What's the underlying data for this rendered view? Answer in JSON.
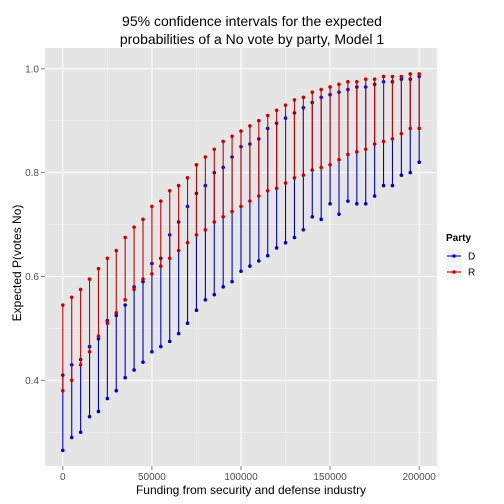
{
  "chart_data": {
    "type": "errorbar",
    "title_lines": [
      "95% confidence intervals for the expected",
      "probabilities of a No vote by party, Model 1"
    ],
    "xlabel": "Funding from security and defense industry",
    "ylabel": "Expected P(votes No)",
    "xlim": [
      -10000,
      210000
    ],
    "ylim": [
      0.235,
      1.04
    ],
    "x_ticks": [
      0,
      50000,
      100000,
      150000,
      200000
    ],
    "x_tick_labels": [
      "0",
      "50000",
      "100000",
      "150000",
      "200000"
    ],
    "y_ticks": [
      0.4,
      0.6,
      0.8,
      1.0
    ],
    "y_tick_labels": [
      "0.4",
      "0.6",
      "0.8",
      "1.0"
    ],
    "grid": true,
    "background": "#e5e5e5",
    "legend": {
      "title": "Party",
      "position": "right",
      "entries": [
        {
          "label": "D",
          "color": "#0000cc"
        },
        {
          "label": "R",
          "color": "#cc0000"
        }
      ]
    },
    "x": [
      0,
      5000,
      10000,
      15000,
      20000,
      25000,
      30000,
      35000,
      40000,
      45000,
      50000,
      55000,
      60000,
      65000,
      70000,
      75000,
      80000,
      85000,
      90000,
      95000,
      100000,
      105000,
      110000,
      115000,
      120000,
      125000,
      130000,
      135000,
      140000,
      145000,
      150000,
      155000,
      160000,
      165000,
      170000,
      175000,
      180000,
      185000,
      190000,
      195000,
      200000
    ],
    "series": [
      {
        "name": "D",
        "color": "#0000cc",
        "lower": [
          0.265,
          0.29,
          0.3,
          0.33,
          0.34,
          0.365,
          0.38,
          0.405,
          0.42,
          0.435,
          0.455,
          0.465,
          0.475,
          0.49,
          0.51,
          0.535,
          0.555,
          0.565,
          0.58,
          0.59,
          0.61,
          0.62,
          0.63,
          0.64,
          0.655,
          0.665,
          0.675,
          0.69,
          0.715,
          0.71,
          0.74,
          0.72,
          0.745,
          0.74,
          0.74,
          0.755,
          0.775,
          0.775,
          0.795,
          0.8,
          0.82
        ],
        "upper": [
          0.41,
          0.43,
          0.44,
          0.465,
          0.48,
          0.515,
          0.525,
          0.545,
          0.58,
          0.59,
          0.625,
          0.635,
          0.68,
          0.705,
          0.735,
          0.76,
          0.775,
          0.8,
          0.81,
          0.83,
          0.85,
          0.855,
          0.865,
          0.885,
          0.895,
          0.905,
          0.915,
          0.925,
          0.935,
          0.945,
          0.95,
          0.955,
          0.96,
          0.965,
          0.965,
          0.97,
          0.975,
          0.975,
          0.98,
          0.98,
          0.985
        ]
      },
      {
        "name": "R",
        "color": "#cc0000",
        "lower": [
          0.38,
          0.4,
          0.43,
          0.455,
          0.485,
          0.51,
          0.53,
          0.555,
          0.575,
          0.595,
          0.605,
          0.62,
          0.635,
          0.65,
          0.665,
          0.68,
          0.69,
          0.705,
          0.715,
          0.725,
          0.735,
          0.745,
          0.755,
          0.765,
          0.77,
          0.78,
          0.79,
          0.795,
          0.805,
          0.81,
          0.815,
          0.825,
          0.835,
          0.84,
          0.845,
          0.855,
          0.86,
          0.865,
          0.875,
          0.885,
          0.885
        ],
        "upper": [
          0.545,
          0.56,
          0.575,
          0.595,
          0.615,
          0.635,
          0.65,
          0.675,
          0.695,
          0.71,
          0.735,
          0.745,
          0.765,
          0.775,
          0.79,
          0.815,
          0.83,
          0.845,
          0.86,
          0.87,
          0.88,
          0.89,
          0.9,
          0.91,
          0.92,
          0.93,
          0.94,
          0.945,
          0.955,
          0.96,
          0.965,
          0.97,
          0.975,
          0.975,
          0.98,
          0.98,
          0.985,
          0.985,
          0.985,
          0.99,
          0.99
        ]
      }
    ]
  }
}
